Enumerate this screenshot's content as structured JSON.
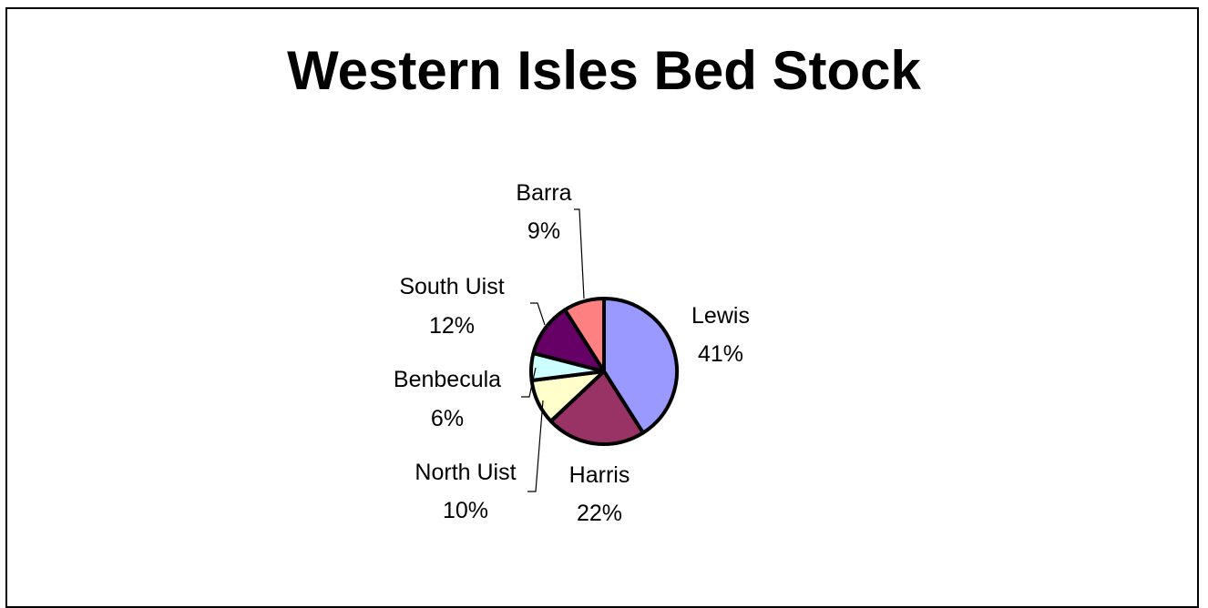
{
  "chart_data": {
    "type": "pie",
    "title": "Western Isles Bed Stock",
    "slices": [
      {
        "label": "Lewis",
        "value": 41,
        "value_label": "41%",
        "color": "#9999ff"
      },
      {
        "label": "Harris",
        "value": 22,
        "value_label": "22%",
        "color": "#993366"
      },
      {
        "label": "North Uist",
        "value": 10,
        "value_label": "10%",
        "color": "#ffffcc"
      },
      {
        "label": "Benbecula",
        "value": 6,
        "value_label": "6%",
        "color": "#ccffff"
      },
      {
        "label": "South Uist",
        "value": 12,
        "value_label": "12%",
        "color": "#660066"
      },
      {
        "label": "Barra",
        "value": 9,
        "value_label": "9%",
        "color": "#ff8080"
      }
    ],
    "legend": "none",
    "data_labels": "category-and-percent"
  }
}
